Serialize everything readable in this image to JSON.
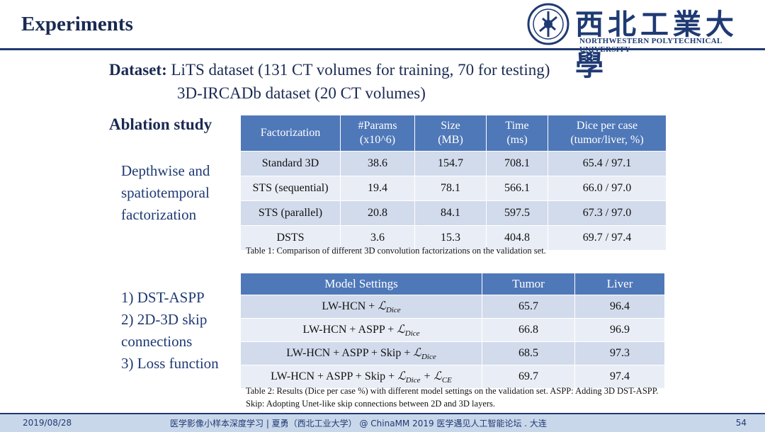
{
  "header": {
    "title": "Experiments",
    "university_cn": "西北工業大學",
    "university_en": "NORTHWESTERN POLYTECHNICAL UNIVERSITY",
    "logo_icon": "npu-seal-icon"
  },
  "dataset": {
    "label": "Dataset:",
    "line1": "LiTS dataset (131 CT volumes for training, 70 for testing)",
    "line2": "3D-IRCADb dataset (20 CT volumes)"
  },
  "ablation_label": "Ablation study",
  "side1": [
    "Depthwise and",
    "spatiotemporal",
    "factorization"
  ],
  "side2": [
    "1) DST-ASPP",
    "2) 2D-3D skip",
    "connections",
    "3) Loss function"
  ],
  "table1": {
    "headers": [
      [
        "Factorization",
        ""
      ],
      [
        "#Params",
        "(x10^6)"
      ],
      [
        "Size",
        "(MB)"
      ],
      [
        "Time",
        "(ms)"
      ],
      [
        "Dice per case",
        "(tumor/liver, %)"
      ]
    ],
    "rows": [
      [
        "Standard 3D",
        "38.6",
        "154.7",
        "708.1",
        "65.4 / 97.1"
      ],
      [
        "STS (sequential)",
        "19.4",
        "78.1",
        "566.1",
        "66.0 / 97.0"
      ],
      [
        "STS (parallel)",
        "20.8",
        "84.1",
        "597.5",
        "67.3 / 97.0"
      ],
      [
        "DSTS",
        "3.6",
        "15.3",
        "404.8",
        "69.7 / 97.4"
      ]
    ],
    "caption": "Table 1: Comparison of different 3D convolution factorizations on the validation set."
  },
  "table2": {
    "headers": [
      "Model Settings",
      "Tumor",
      "Liver"
    ],
    "rows": [
      {
        "setting": "LW-HCN + ",
        "loss": "ℒ",
        "loss_sub": "Dice",
        "loss2": "",
        "loss2_sub": "",
        "tumor": "65.7",
        "liver": "96.4"
      },
      {
        "setting": "LW-HCN + ASPP + ",
        "loss": "ℒ",
        "loss_sub": "Dice",
        "loss2": "",
        "loss2_sub": "",
        "tumor": "66.8",
        "liver": "96.9"
      },
      {
        "setting": "LW-HCN + ASPP + Skip + ",
        "loss": "ℒ",
        "loss_sub": "Dice",
        "loss2": "",
        "loss2_sub": "",
        "tumor": "68.5",
        "liver": "97.3"
      },
      {
        "setting": "LW-HCN + ASPP + Skip + ",
        "loss": "ℒ",
        "loss_sub": "Dice",
        "loss2": " + ℒ",
        "loss2_sub": "CE",
        "tumor": "69.7",
        "liver": "97.4"
      }
    ],
    "caption": "Table 2: Results (Dice per case %) with different model settings on the validation set. ASPP: Adding 3D DST-ASPP. Skip: Adopting Unet-like skip connections between 2D and 3D layers."
  },
  "footer": {
    "date": "2019/08/28",
    "center": "医学影像小样本深度学习 | 夏勇（西北工业大学） @ ChinaMM 2019 医学遇见人工智能论坛 . 大连",
    "page": "54"
  }
}
